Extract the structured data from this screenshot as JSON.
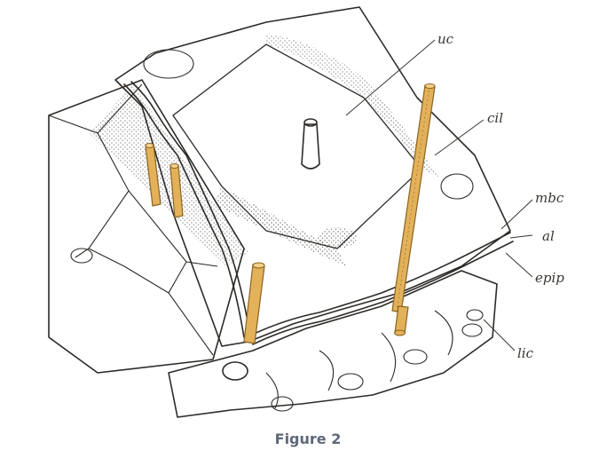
{
  "labels": {
    "uc": "uc",
    "cil": "cil",
    "mbc": "mbc",
    "al": "al",
    "epip": "epip",
    "lic": "lic"
  },
  "caption": "Figure 2",
  "colors": {
    "cilia_fill": "#e2b15a",
    "cilia_stroke": "#8a6422",
    "ink": "#2d2a27",
    "caption": "#5d6878"
  }
}
